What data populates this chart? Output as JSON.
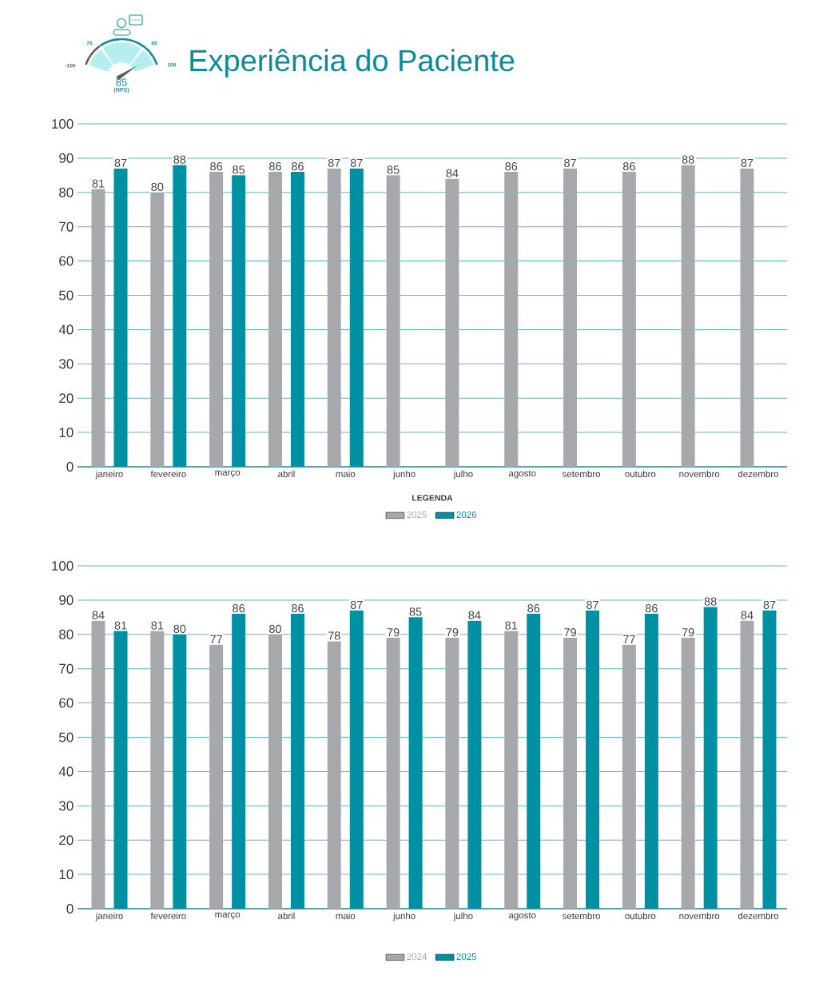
{
  "chart_data": [
    {
      "type": "bar",
      "title": "Experiência do Paciente",
      "annotations": [
        "-100",
        "75",
        "85",
        "100",
        "85",
        "(NPS)"
      ],
      "categories": [
        "janeiro",
        "fevereiro",
        "março",
        "abril",
        "maio",
        "junho",
        "julho",
        "agosto",
        "setembro",
        "outubro",
        "novembro",
        "dezembro"
      ],
      "series": [
        {
          "name": "2025",
          "color": "#a7a8ab",
          "values": [
            81,
            80,
            86,
            86,
            87,
            85,
            84,
            86,
            87,
            86,
            88,
            87
          ]
        },
        {
          "name": "2026",
          "color": "#0090a3",
          "values": [
            87,
            88,
            85,
            86,
            87,
            null,
            null,
            null,
            null,
            null,
            null,
            null
          ]
        }
      ],
      "ylim": [
        0,
        100
      ],
      "yticks": [
        0,
        10,
        20,
        30,
        40,
        50,
        60,
        70,
        80,
        90,
        100
      ],
      "grid": "y",
      "legend": "bottom",
      "legend_title": "LEGENDA",
      "data_labels": true
    },
    {
      "type": "bar",
      "categories": [
        "janeiro",
        "fevereiro",
        "março",
        "abril",
        "maio",
        "junho",
        "julho",
        "agosto",
        "setembro",
        "outubro",
        "novembro",
        "dezembro"
      ],
      "series": [
        {
          "name": "2024",
          "color": "#a7a8ab",
          "values": [
            84,
            81,
            77,
            80,
            78,
            79,
            79,
            81,
            79,
            77,
            79,
            84
          ]
        },
        {
          "name": "2025",
          "color": "#0090a3",
          "values": [
            81,
            80,
            86,
            86,
            87,
            85,
            84,
            86,
            87,
            86,
            88,
            87
          ]
        }
      ],
      "ylim": [
        0,
        100
      ],
      "yticks": [
        0,
        10,
        20,
        30,
        40,
        50,
        60,
        70,
        80,
        90,
        100
      ],
      "grid": "y",
      "legend": "bottom",
      "data_labels": true
    }
  ]
}
